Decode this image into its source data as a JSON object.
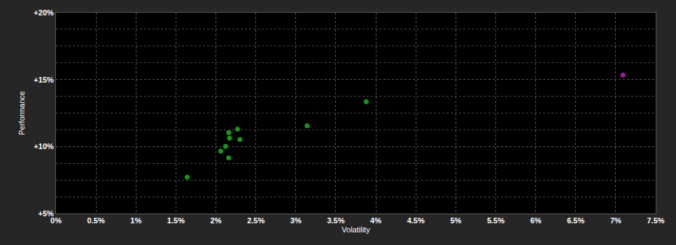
{
  "chart_data": {
    "type": "scatter",
    "x_label": "Volatility",
    "y_label": "Performance",
    "series": [
      {
        "color": "#139a13",
        "marker": "circle",
        "x": [
          1.64,
          2.06,
          2.12,
          2.16,
          2.17,
          2.16,
          2.27,
          2.3,
          3.14,
          3.88
        ],
        "values": [
          7.71,
          9.66,
          10.02,
          11.04,
          10.63,
          9.15,
          11.3,
          10.53,
          11.55,
          13.35
        ]
      },
      {
        "color": "#a0179f",
        "marker": "circle",
        "x": [
          7.09
        ],
        "values": [
          15.34
        ]
      }
    ],
    "xlim": [
      0,
      7.5
    ],
    "xticks": [
      {
        "value": 0,
        "label": "0%"
      },
      {
        "value": 0.5,
        "label": "0.5%"
      },
      {
        "value": 1,
        "label": "1%"
      },
      {
        "value": 1.5,
        "label": "1.5%"
      },
      {
        "value": 2,
        "label": "2%"
      },
      {
        "value": 2.5,
        "label": "2.5%"
      },
      {
        "value": 3,
        "label": "3%"
      },
      {
        "value": 3.5,
        "label": "3.5%"
      },
      {
        "value": 4,
        "label": "4%"
      },
      {
        "value": 4.5,
        "label": "4.5%"
      },
      {
        "value": 5,
        "label": "5%"
      },
      {
        "value": 5.5,
        "label": "5.5%"
      },
      {
        "value": 6,
        "label": "6%"
      },
      {
        "value": 6.5,
        "label": "6.5%"
      },
      {
        "value": 7,
        "label": "7%"
      },
      {
        "value": 7.5,
        "label": "7.5%"
      }
    ],
    "ylim": [
      5,
      20
    ],
    "yticks": [
      {
        "value": 5,
        "label": "+5%"
      },
      {
        "value": 10,
        "label": "+10%"
      },
      {
        "value": 15,
        "label": "+15%"
      },
      {
        "value": 20,
        "label": "+20%"
      }
    ],
    "grid": true
  }
}
